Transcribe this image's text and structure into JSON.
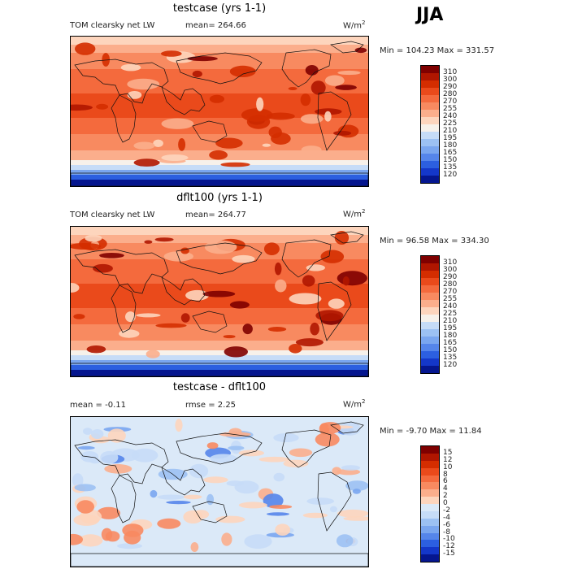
{
  "season": "JJA",
  "panels": [
    {
      "title": "testcase (yrs 1-1)",
      "left_label": "TOM clearsky net LW",
      "mid_label": "mean=  264.66",
      "units": "W/m",
      "units_sup": "2",
      "minmax": "Min = 104.23 Max = 331.57",
      "scheme": "abs"
    },
    {
      "title": "dflt100 (yrs 1-1)",
      "left_label": "TOM clearsky net LW",
      "mid_label": "mean=  264.77",
      "units": "W/m",
      "units_sup": "2",
      "minmax": "Min =  96.58 Max = 334.30",
      "scheme": "abs"
    },
    {
      "title": "testcase - dflt100",
      "left_label": "mean =   -0.11",
      "mid_label": "rmse =    2.25",
      "units": "W/m",
      "units_sup": "2",
      "minmax": "Min =  -9.70 Max =   11.84",
      "scheme": "diff"
    }
  ],
  "colorbars": {
    "abs": {
      "labels": [
        "310",
        "300",
        "290",
        "280",
        "270",
        "255",
        "240",
        "225",
        "210",
        "195",
        "180",
        "165",
        "150",
        "135",
        "120"
      ],
      "colors": [
        "#7f0000",
        "#b01600",
        "#d42d00",
        "#ea4a1b",
        "#f46a3d",
        "#f88a60",
        "#fbae8c",
        "#fdd5bd",
        "#f7f1ea",
        "#c6dcf7",
        "#9cc1f3",
        "#7aa6ef",
        "#5585ea",
        "#2c5fe0",
        "#1437c9",
        "#05168f"
      ]
    },
    "diff": {
      "labels": [
        "15",
        "12",
        "10",
        "8",
        "6",
        "4",
        "2",
        "0",
        "-2",
        "-4",
        "-6",
        "-8",
        "-10",
        "-12",
        "-15"
      ],
      "colors": [
        "#7f0000",
        "#b01600",
        "#d42d00",
        "#ea4a1b",
        "#f46a3d",
        "#f88a60",
        "#fbae8c",
        "#fdd5bd",
        "#dbe9f8",
        "#c6dcf7",
        "#9cc1f3",
        "#7aa6ef",
        "#5585ea",
        "#2c5fe0",
        "#1437c9",
        "#05168f"
      ]
    }
  }
}
